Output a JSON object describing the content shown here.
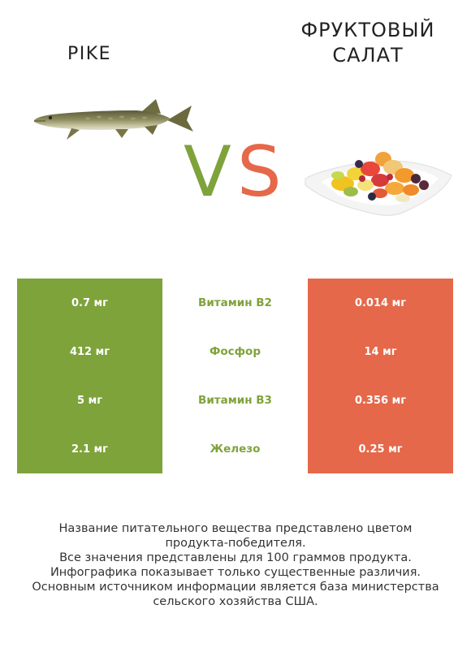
{
  "left_product": {
    "name": "PIKE",
    "image_icon": "pike-fish-icon"
  },
  "right_product": {
    "name": "ФРУКТОВЫЙ САЛАТ",
    "image_icon": "fruit-salad-icon"
  },
  "vs": {
    "v": "V",
    "s": "S"
  },
  "colors": {
    "winner_left": "#7ea33b",
    "winner_right": "#e5684a"
  },
  "rows": [
    {
      "left": "0.7 мг",
      "nutrient": "Витамин B2",
      "right": "0.014 мг",
      "winner": "left"
    },
    {
      "left": "412 мг",
      "nutrient": "Фосфор",
      "right": "14 мг",
      "winner": "left"
    },
    {
      "left": "5 мг",
      "nutrient": "Витамин B3",
      "right": "0.356 мг",
      "winner": "left"
    },
    {
      "left": "2.1 мг",
      "nutrient": "Железо",
      "right": "0.25 мг",
      "winner": "left"
    }
  ],
  "footnote": {
    "line1": "Название питательного вещества представлено цветом",
    "line2": "продукта-победителя.",
    "line3": "Все значения представлены для 100 граммов продукта.",
    "line4": "Инфографика показывает только существенные различия.",
    "line5": "Основным источником информации является база министерства",
    "line6": "сельского хозяйства США."
  }
}
